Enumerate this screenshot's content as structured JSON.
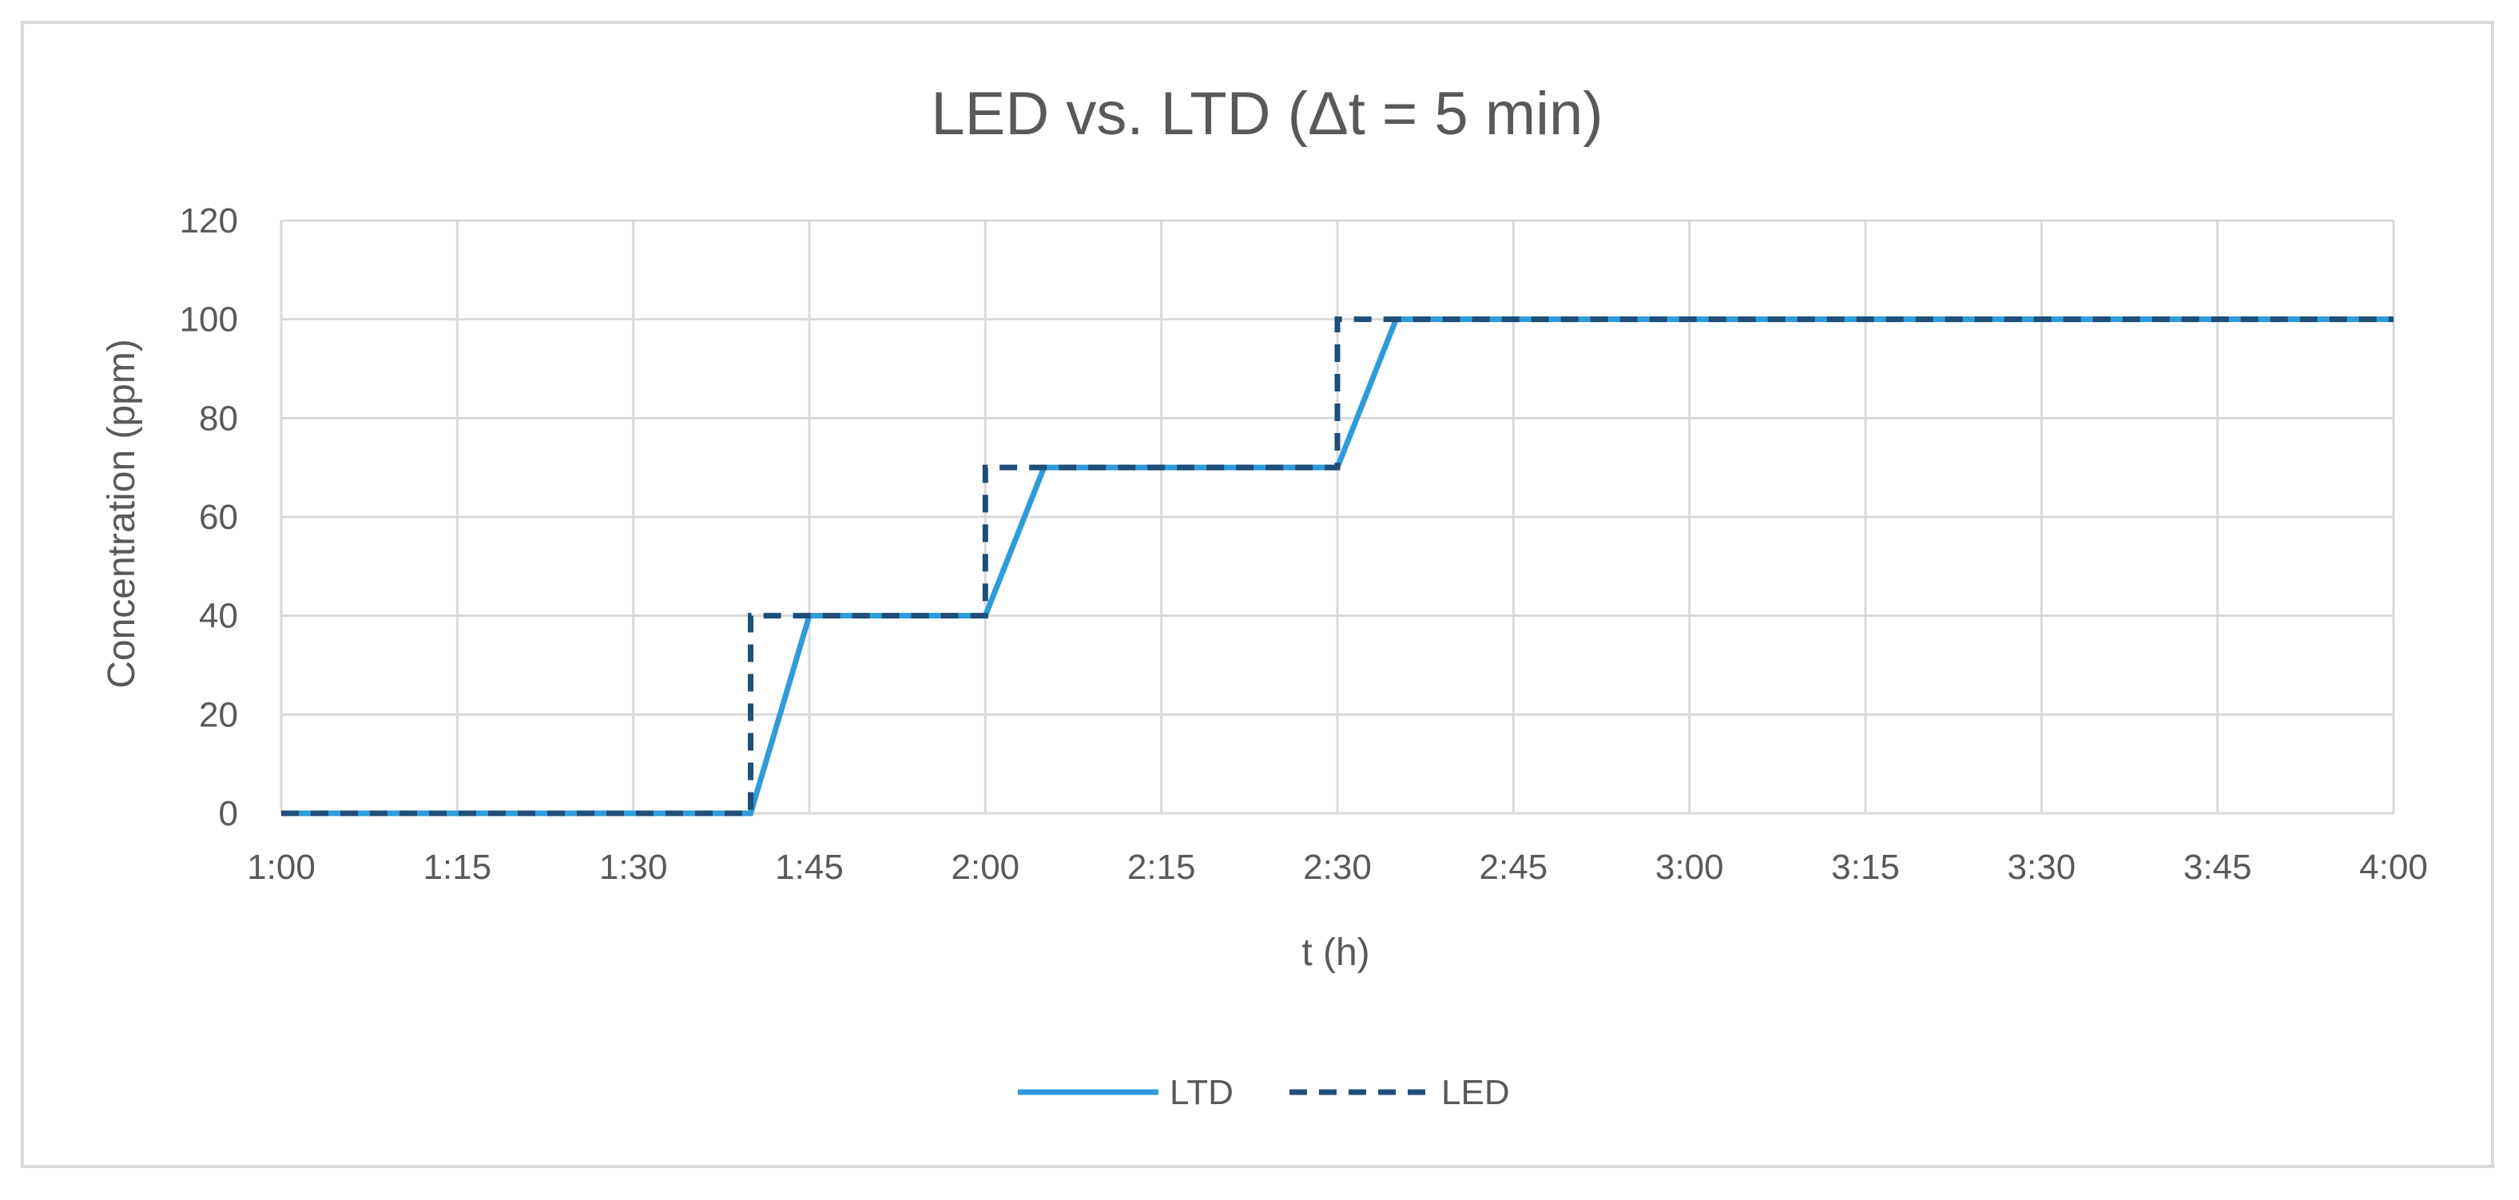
{
  "chart_data": {
    "type": "line",
    "title": "LED vs. LTD (Δt = 5 min)",
    "xlabel": "t (h)",
    "ylabel": "Concentration (ppm)",
    "x_ticks": [
      "1:00",
      "1:15",
      "1:30",
      "1:45",
      "2:00",
      "2:15",
      "2:30",
      "2:45",
      "3:00",
      "3:15",
      "3:30",
      "3:45",
      "4:00"
    ],
    "xlim": [
      "1:00",
      "4:00"
    ],
    "ylim": [
      0,
      120
    ],
    "y_ticks": [
      0,
      20,
      40,
      60,
      80,
      100,
      120
    ],
    "grid": true,
    "legend_position": "bottom",
    "series": [
      {
        "name": "LTD",
        "style": "solid",
        "color": "#2E9BDA",
        "x": [
          "1:00",
          "1:40",
          "1:45",
          "2:00",
          "2:05",
          "2:30",
          "2:35",
          "4:00"
        ],
        "y": [
          0,
          0,
          40,
          40,
          70,
          70,
          100,
          100
        ]
      },
      {
        "name": "LED",
        "style": "dashed",
        "color": "#1F4E79",
        "x": [
          "1:00",
          "1:40",
          "1:40",
          "2:00",
          "2:00",
          "2:30",
          "2:30",
          "4:00"
        ],
        "y": [
          0,
          0,
          40,
          40,
          70,
          70,
          100,
          100
        ]
      }
    ]
  }
}
